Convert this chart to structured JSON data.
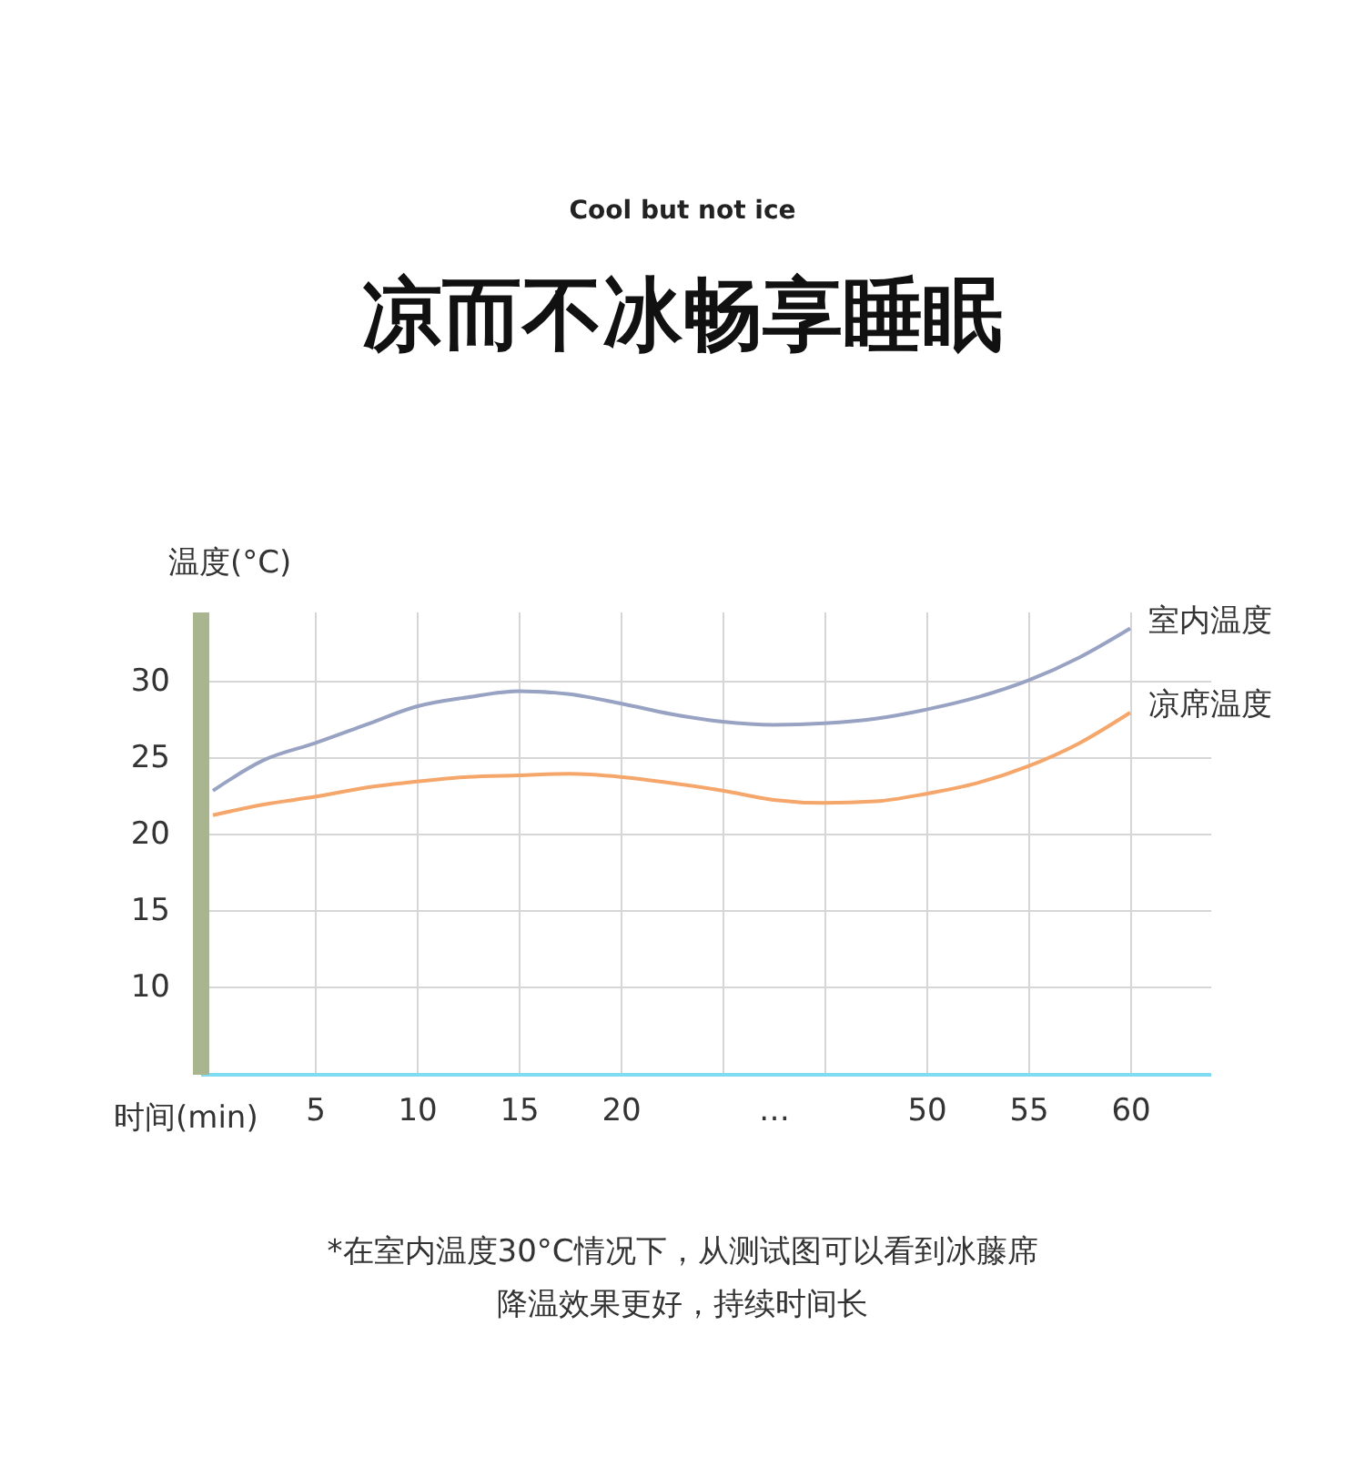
{
  "chart_data": {
    "type": "line",
    "subtitle": "Cool but not ice",
    "title": "凉而不冰畅享睡眠",
    "ylabel": "温度(°C)",
    "xlabel": "时间(min)",
    "categories": [
      null,
      null,
      "5",
      null,
      "10",
      null,
      "15",
      null,
      "20",
      null,
      null,
      "…",
      null,
      null,
      "50",
      null,
      "55",
      null,
      "60"
    ],
    "series": [
      {
        "name": "室内温度",
        "color": "#98a3c4",
        "values": [
          22.8,
          24.8,
          25.9,
          27.1,
          28.3,
          28.9,
          29.3,
          29.1,
          28.5,
          27.8,
          27.3,
          27.1,
          27.2,
          27.5,
          28.1,
          28.9,
          30.0,
          31.5,
          33.4
        ]
      },
      {
        "name": "凉席温度",
        "color": "#f5a66a",
        "values": [
          21.2,
          21.9,
          22.4,
          23.0,
          23.4,
          23.7,
          23.8,
          23.9,
          23.7,
          23.3,
          22.8,
          22.2,
          22.0,
          22.1,
          22.6,
          23.3,
          24.4,
          25.9,
          27.9
        ]
      }
    ],
    "ylim": [
      4.3,
      34.5
    ],
    "yticks": [
      10,
      15,
      20,
      25,
      30
    ],
    "grid": true,
    "legend": false,
    "marker": "none",
    "line_style": "solid",
    "annotations": [
      "*在室内温度30°C情况下，从测试图可以看到冰藤席",
      "降温效果更好，持续时间长"
    ]
  }
}
